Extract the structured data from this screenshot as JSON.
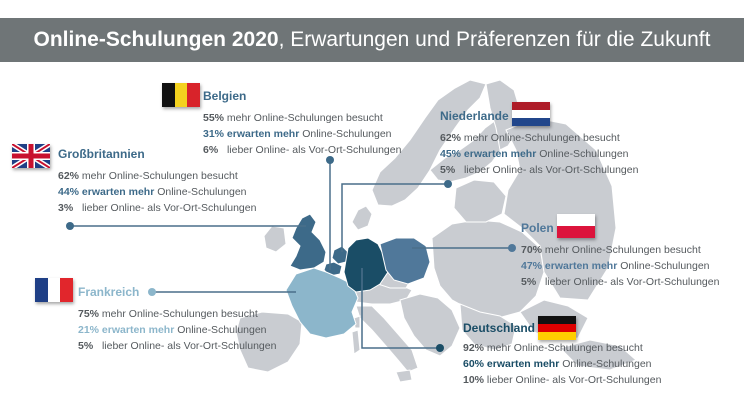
{
  "title": {
    "bold": "Online-Schulungen 2020",
    "rest": ", Erwartungen und Präferenzen für die Zukunft"
  },
  "colors": {
    "map_base": "#c9ccd1",
    "uk": "#3d6a89",
    "be": "#3d6a89",
    "fr": "#8cb6cb",
    "de": "#1a4d66",
    "nl": "#3d6a89",
    "pl": "#50789a",
    "line": "#4a6f8a"
  },
  "countries": {
    "belgien": {
      "name": "Belgien",
      "accent": "#3d6a89",
      "line1_pct": "55%",
      "line1_text": " mehr Online-Schulungen besucht",
      "line2_hl": "31% erwarten mehr",
      "line2_text": " Online-Schulungen",
      "line3_pct": "6%",
      "line3_text": "   lieber Online- als Vor-Ort-Schulungen"
    },
    "grossbritannien": {
      "name": "Großbritannien",
      "accent": "#3d6a89",
      "line1_pct": "62%",
      "line1_text": " mehr Online-Schulungen besucht",
      "line2_hl": "44% erwarten mehr",
      "line2_text": " Online-Schulungen",
      "line3_pct": "3%",
      "line3_text": "   lieber Online- als Vor-Ort-Schulungen"
    },
    "niederlande": {
      "name": "Niederlande",
      "accent": "#3d6a89",
      "line1_pct": "62%",
      "line1_text": " mehr Online-Schulungen besucht",
      "line2_hl": "45% erwarten mehr",
      "line2_text": " Online-Schulungen",
      "line3_pct": "5%",
      "line3_text": "   lieber Online- als Vor-Ort-Schulungen"
    },
    "polen": {
      "name": "Polen",
      "accent": "#50789a",
      "line1_pct": "70%",
      "line1_text": " mehr Online-Schulungen besucht",
      "line2_hl": "47% erwarten mehr",
      "line2_text": " Online-Schulungen",
      "line3_pct": "5%",
      "line3_text": "   lieber Online- als Vor-Ort-Schulungen"
    },
    "frankreich": {
      "name": "Frankreich",
      "accent": "#8cb6cb",
      "line1_pct": "75%",
      "line1_text": " mehr Online-Schulungen besucht",
      "line2_hl": "21% erwarten mehr",
      "line2_text": " Online-Schulungen",
      "line3_pct": "5%",
      "line3_text": "   lieber Online- als Vor-Ort-Schulungen"
    },
    "deutschland": {
      "name": "Deutschland",
      "accent": "#1a4d66",
      "line1_pct": "92%",
      "line1_text": " mehr Online-Schulungen besucht",
      "line2_hl": "60% erwarten mehr",
      "line2_text": " Online-Schulungen",
      "line3_pct": "10%",
      "line3_text": " lieber Online- als Vor-Ort-Schulungen"
    }
  }
}
